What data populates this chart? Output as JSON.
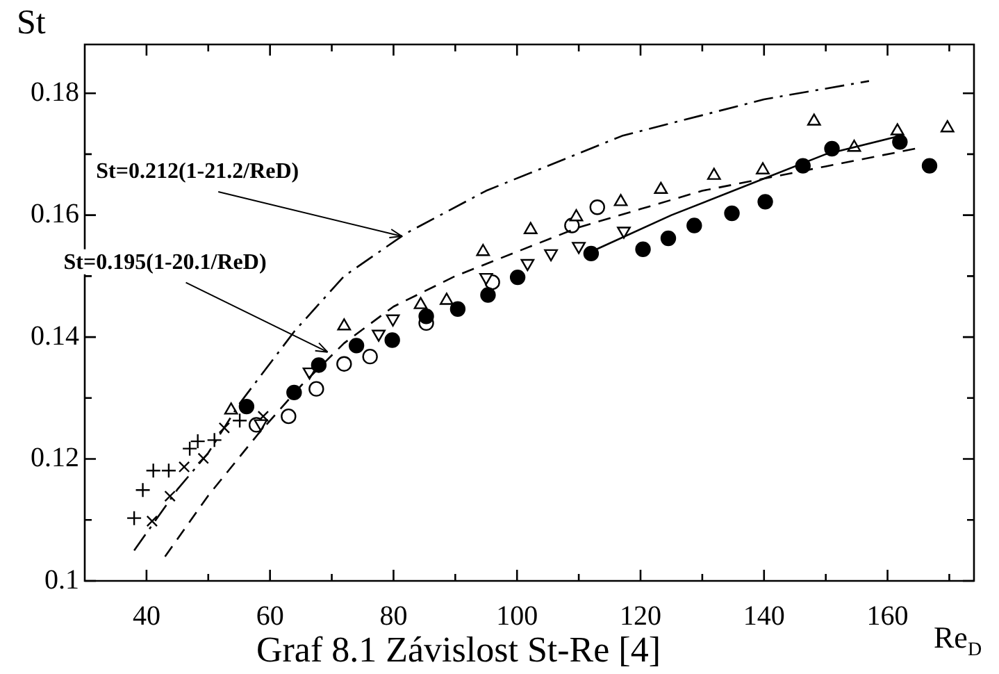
{
  "chart_data": {
    "type": "scatter",
    "xlabel": "Re$_{D}$",
    "ylabel": "St",
    "xlim": [
      30,
      174
    ],
    "xticks": [
      40,
      {
        "value": 50,
        "label": null
      },
      60,
      {
        "value": 70,
        "label": null
      },
      80,
      {
        "value": 90,
        "label": null
      },
      100,
      {
        "value": 110,
        "label": null
      },
      120,
      {
        "value": 130,
        "label": null
      },
      140,
      {
        "value": 150,
        "label": null
      },
      160,
      {
        "value": 170,
        "label": null
      }
    ],
    "ylim": [
      0.1,
      0.188
    ],
    "yticks": [
      0.1,
      {
        "value": 0.11,
        "label": null
      },
      0.12,
      {
        "value": 0.13,
        "label": null
      },
      0.14,
      {
        "value": 0.15,
        "label": null
      },
      0.16,
      {
        "value": 0.17,
        "label": null
      },
      0.18
    ],
    "grid": false,
    "legend": false,
    "annotations": [
      {
        "text": "St=0.212(1-21.2/ReD)",
        "x": 82,
        "y": 0.157
      },
      {
        "text": "St=0.195(1-20.1/ReD)",
        "x": 70,
        "y": 0.138
      },
      "Graf 8.1 Závislost St-Re [4]"
    ],
    "series": [
      {
        "type": "line",
        "line_style": "dashdot",
        "marker": "none",
        "color": "#000000",
        "x": [
          38,
          45,
          50,
          55,
          64,
          72,
          82,
          95,
          117,
          140,
          157
        ],
        "values": [
          0.105,
          0.115,
          0.121,
          0.129,
          0.141,
          0.15,
          0.157,
          0.164,
          0.173,
          0.179,
          0.182
        ]
      },
      {
        "type": "line",
        "line_style": "dashed",
        "marker": "none",
        "color": "#000000",
        "x": [
          43,
          50,
          58,
          65,
          72,
          80,
          90,
          100,
          110,
          120,
          130,
          140,
          150,
          165
        ],
        "values": [
          0.104,
          0.114,
          0.124,
          0.132,
          0.139,
          0.145,
          0.15,
          0.154,
          0.158,
          0.161,
          0.164,
          0.166,
          0.168,
          0.171
        ]
      },
      {
        "type": "line",
        "line_style": "solid",
        "marker": "none",
        "color": "#000000",
        "x": [
          112,
          125,
          140,
          150,
          162
        ],
        "values": [
          0.154,
          0.16,
          0.166,
          0.17,
          0.173
        ]
      },
      {
        "marker": "circle",
        "color": "#000000",
        "x": [
          56.2,
          63.9,
          67.9,
          74,
          79.8,
          85.3,
          90.4,
          95.3,
          100.1,
          112,
          120.4,
          124.5,
          128.7,
          134.8,
          140.2,
          146.3,
          151,
          162,
          166.8
        ],
        "values": [
          0.1286,
          0.1309,
          0.1354,
          0.1386,
          0.1395,
          0.1434,
          0.1446,
          0.1469,
          0.1498,
          0.1537,
          0.1544,
          0.1562,
          0.1583,
          0.1603,
          0.1622,
          0.1681,
          0.1709,
          0.172,
          0.1681
        ]
      },
      {
        "marker": "triangle",
        "color": "#ffffff",
        "x": [
          53.7,
          72,
          84.4,
          88.6,
          94.5,
          102.2,
          109.6,
          116.8,
          123.3,
          131.9,
          139.8,
          148.1,
          154.6,
          161.6,
          169.7
        ],
        "values": [
          0.128,
          0.1418,
          0.1453,
          0.146,
          0.154,
          0.1576,
          0.1597,
          0.1622,
          0.1642,
          0.1665,
          0.1674,
          0.1754,
          0.1711,
          0.1738,
          0.1743
        ]
      },
      {
        "marker": "triangle-down",
        "color": "#ffffff",
        "x": [
          58.5,
          66.4,
          68.6,
          77.6,
          79.9,
          95,
          101.7,
          105.5,
          110,
          117.3
        ],
        "values": [
          0.1258,
          0.1343,
          null,
          0.1405,
          0.143,
          0.1498,
          0.1521,
          0.1537,
          0.1549,
          0.1574
        ]
      },
      {
        "marker": "circle",
        "color": "#ffffff",
        "x": [
          57.8,
          63,
          67.5,
          72,
          76.2,
          85.3,
          96,
          108.9,
          113
        ],
        "values": [
          0.1256,
          0.127,
          0.1315,
          0.1356,
          0.1368,
          0.1423,
          0.149,
          0.1583,
          0.1613
        ]
      },
      {
        "marker": "cross",
        "color": "#000000",
        "x": [
          38,
          39.4,
          41.1,
          43.6,
          47,
          48.3,
          51,
          55.1
        ],
        "values": [
          0.1103,
          0.1149,
          0.1181,
          0.1181,
          0.1217,
          0.1229,
          0.1231,
          0.1263
        ]
      },
      {
        "marker": "x",
        "color": "#000000",
        "x": [
          40.9,
          43.8,
          46.1,
          49.2,
          52.6,
          58.9
        ],
        "values": [
          0.1098,
          0.1139,
          0.1187,
          0.1201,
          0.1251,
          0.127
        ]
      }
    ]
  }
}
